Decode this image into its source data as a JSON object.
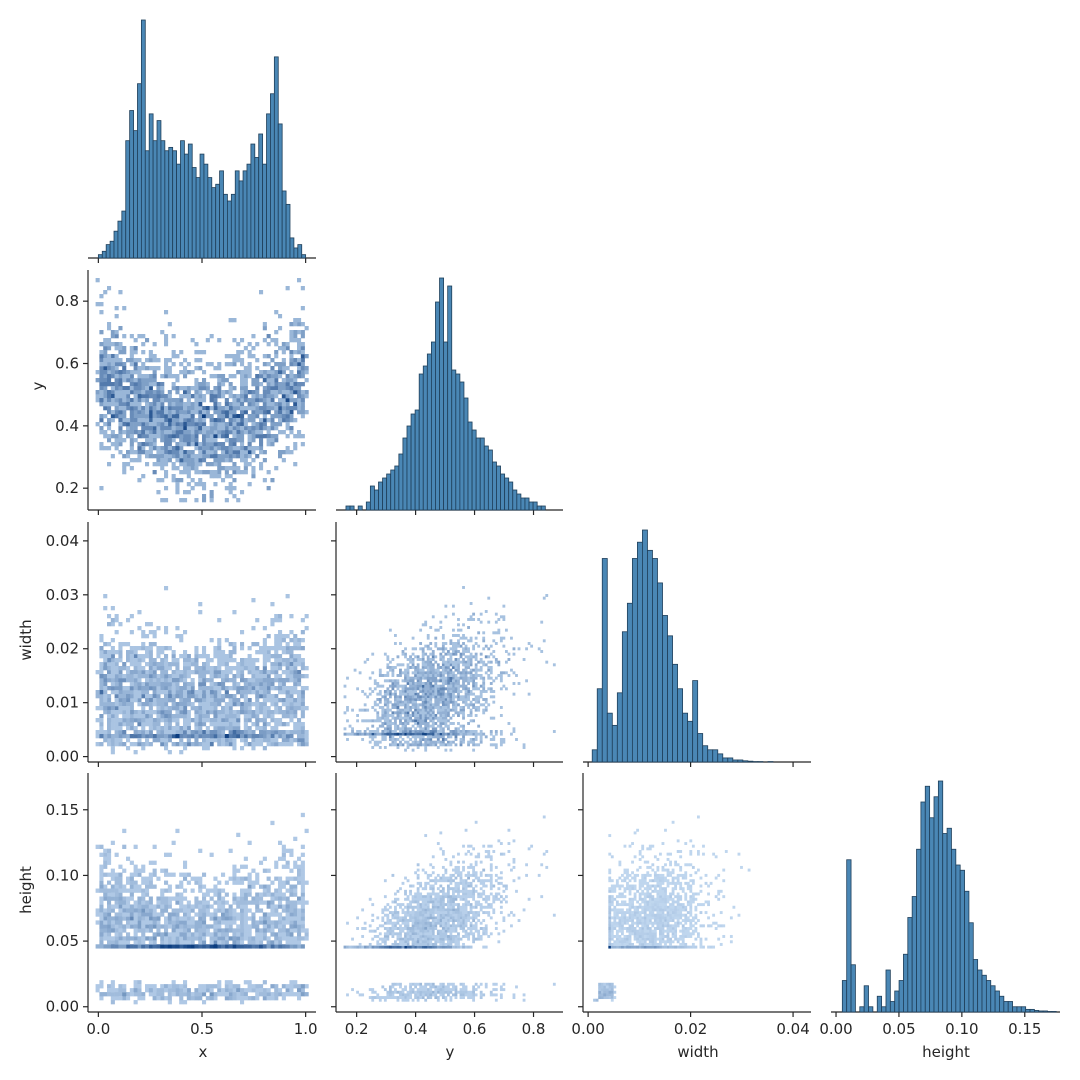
{
  "chart_data": {
    "type": "pairplot",
    "variables": [
      "x",
      "y",
      "width",
      "height"
    ],
    "diag_kind": "hist",
    "offdiag_kind": "hist2d",
    "corner": true,
    "color_bar": "#4a87b5",
    "color_hist2d_light": "#c6dcf3",
    "color_hist2d_dark": "#0b3d80",
    "axes": {
      "x": {
        "range": [
          -0.05,
          1.05
        ],
        "ticks": [
          0.0,
          0.5,
          1.0
        ],
        "tick_labels": [
          "0.0",
          "0.5",
          "1.0"
        ]
      },
      "y": {
        "range": [
          0.13,
          0.9
        ],
        "ticks": [
          0.2,
          0.4,
          0.6,
          0.8
        ],
        "tick_labels": [
          "0.2",
          "0.4",
          "0.6",
          "0.8"
        ]
      },
      "width": {
        "range": [
          -0.001,
          0.0435
        ],
        "ticks": [
          0.0,
          0.01,
          0.02,
          0.03,
          0.04
        ],
        "tick_labels": [
          "0.00",
          "0.01",
          "0.02",
          "0.03",
          "0.04"
        ],
        "tick_labels_x": [
          "0.00",
          "0.02",
          "0.04"
        ]
      },
      "height": {
        "range": [
          -0.004,
          0.178
        ],
        "ticks": [
          0.0,
          0.05,
          0.1,
          0.15
        ],
        "tick_labels": [
          "0.00",
          "0.05",
          "0.10",
          "0.15"
        ]
      }
    },
    "row_labels": [
      "y",
      "width",
      "height"
    ],
    "col_labels": [
      "x",
      "y",
      "width",
      "height"
    ],
    "histograms": {
      "x": {
        "bins": [
          0.0,
          1.0
        ],
        "counts": [
          1,
          2,
          4,
          5,
          8,
          11,
          14,
          35,
          44,
          38,
          52,
          71,
          32,
          43,
          35,
          41,
          35,
          32,
          33,
          32,
          28,
          35,
          31,
          34,
          27,
          24,
          31,
          28,
          24,
          21,
          22,
          26,
          19,
          17,
          19,
          26,
          23,
          26,
          28,
          34,
          30,
          37,
          28,
          43,
          49,
          60,
          40,
          20,
          16,
          6,
          3,
          4,
          1
        ]
      },
      "y": {
        "bins": [
          0.15,
          0.84
        ],
        "counts": [
          0,
          1,
          1,
          0,
          1,
          0,
          2,
          6,
          5,
          7,
          8,
          9,
          10,
          11,
          14,
          18,
          21,
          24,
          25,
          34,
          36,
          39,
          42,
          52,
          58,
          42,
          56,
          35,
          34,
          32,
          28,
          22,
          20,
          18,
          18,
          16,
          15,
          12,
          11,
          9,
          8,
          7,
          5,
          4,
          3,
          3,
          2,
          2,
          1,
          1
        ]
      },
      "width": {
        "bins": [
          0.0008,
          0.04
        ],
        "counts": [
          3,
          18,
          50,
          12,
          9,
          17,
          32,
          39,
          50,
          54,
          57,
          52,
          50,
          44,
          36,
          31,
          24,
          18,
          12,
          10,
          20,
          7,
          4,
          3,
          3,
          2,
          1,
          1,
          0.5,
          0.5,
          0.3,
          0.2,
          0.1,
          0.1,
          0,
          0.1,
          0,
          0,
          0,
          0
        ]
      },
      "height": {
        "bins": [
          0.005,
          0.175
        ],
        "counts": [
          6,
          29,
          9,
          0,
          1,
          5,
          1,
          0,
          3,
          1,
          8,
          2,
          4,
          6,
          11,
          18,
          22,
          31,
          40,
          43,
          37,
          41,
          44,
          34,
          35,
          31,
          28,
          27,
          23,
          17,
          10,
          8,
          7,
          6,
          5,
          4,
          3,
          2,
          2,
          1,
          1,
          1,
          0.5,
          0.5,
          0.3,
          0.2,
          0.2,
          0.1,
          0.1
        ]
      }
    },
    "hist2d_panels": [
      {
        "row": "y",
        "col": "x",
        "note": "U-shaped density, dense 0.35-0.55"
      },
      {
        "row": "width",
        "col": "x",
        "note": "uniform band 0.005-0.025 with low stripe near 0.003"
      },
      {
        "row": "width",
        "col": "y",
        "note": "increasing cloud, thin lower band"
      },
      {
        "row": "height",
        "col": "x",
        "note": "band 0.05-0.15 plus low stripe near 0.012"
      },
      {
        "row": "height",
        "col": "y",
        "note": "increasing cloud, thin lower band near 0.01"
      },
      {
        "row": "height",
        "col": "width",
        "note": "positive correlation, dense near (0.008, 0.07)"
      }
    ]
  }
}
